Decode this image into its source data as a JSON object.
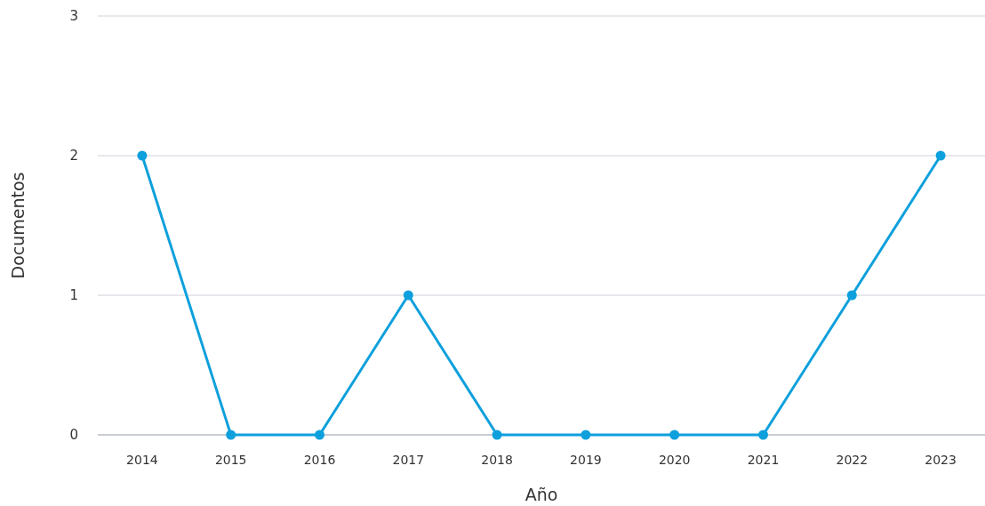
{
  "chart_data": {
    "type": "line",
    "xlabel": "Año",
    "ylabel": "Documentos",
    "categories": [
      "2014",
      "2015",
      "2016",
      "2017",
      "2018",
      "2019",
      "2020",
      "2021",
      "2022",
      "2023"
    ],
    "series": [
      {
        "color": "#0ea0dc",
        "values": [
          2,
          0,
          0,
          1,
          0,
          0,
          0,
          0,
          1,
          2
        ]
      }
    ],
    "ylim": [
      0,
      3
    ],
    "yticks": [
      0,
      1,
      2,
      3
    ],
    "grid": "y",
    "marker": "circle",
    "line_style": "solid"
  }
}
